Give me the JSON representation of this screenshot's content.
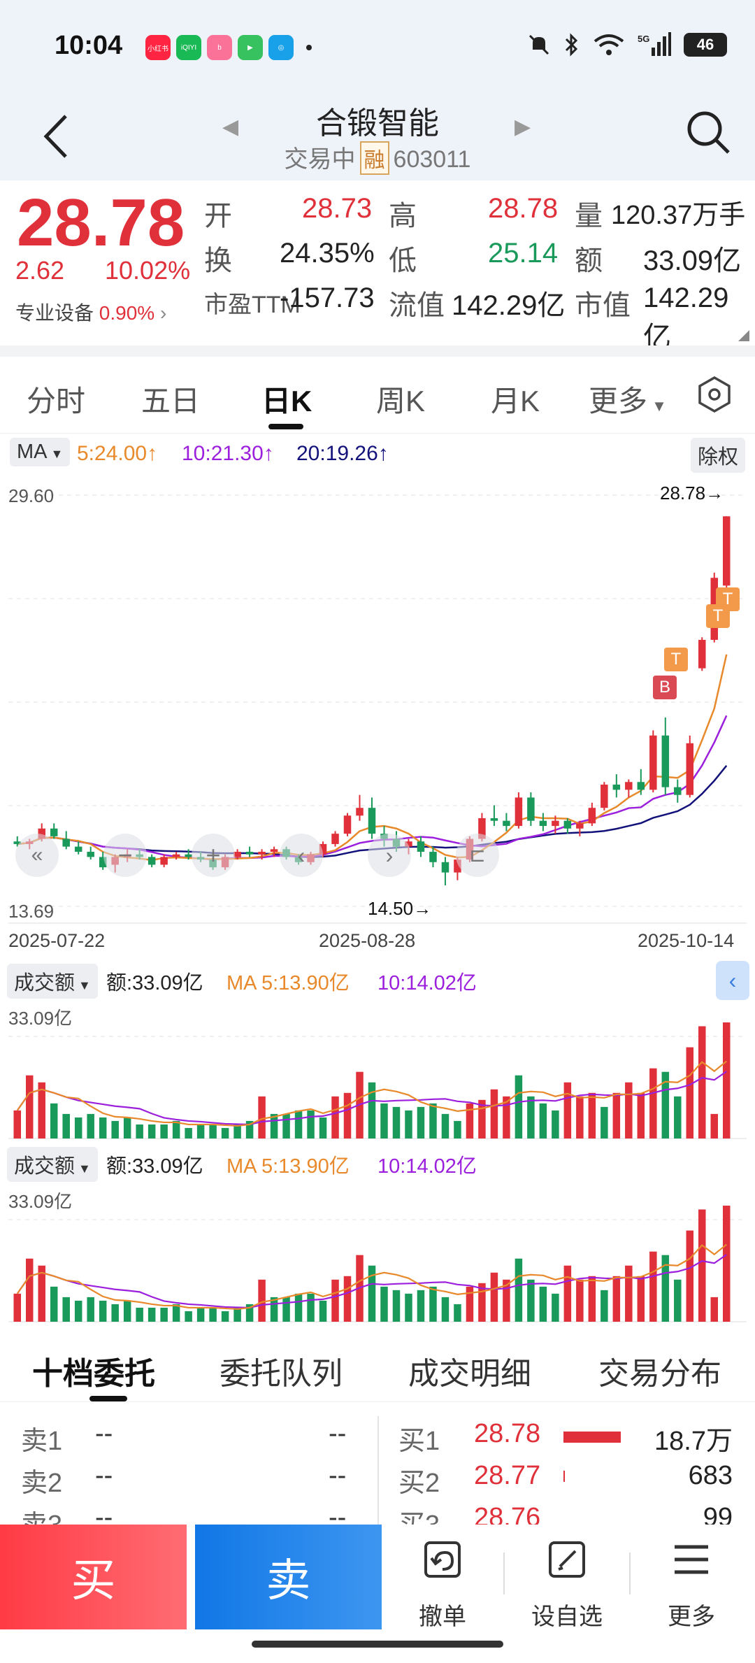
{
  "status": {
    "time": "10:04",
    "network": "5G",
    "battery": "46",
    "apps": [
      {
        "name": "小红书",
        "color": "#ff2442"
      },
      {
        "name": "iQIYI",
        "color": "#19b955"
      },
      {
        "name": "bilibili",
        "color": "#fb7299"
      },
      {
        "name": "video",
        "color": "#37c15f"
      },
      {
        "name": "mobile",
        "color": "#18a0e8"
      }
    ]
  },
  "header": {
    "title": "合锻智能",
    "status": "交易中",
    "margin_badge": "融",
    "code": "603011"
  },
  "quote": {
    "price": "28.78",
    "change": "2.62",
    "change_pct": "10.02%",
    "sector": "专业设备",
    "sector_pct": "0.90%",
    "open_label": "开",
    "open": "28.73",
    "high_label": "高",
    "high": "28.78",
    "volume_label": "量",
    "volume": "120.37万手",
    "turnover_label": "换",
    "turnover": "24.35%",
    "low_label": "低",
    "low": "25.14",
    "amount_label": "额",
    "amount": "33.09亿",
    "pe_label": "市盈TTM",
    "pe": "-157.73",
    "float_cap_label": "流值",
    "float_cap": "142.29亿",
    "mkt_cap_label": "市值",
    "mkt_cap": "142.29亿"
  },
  "tabs": [
    "分时",
    "五日",
    "日K",
    "周K",
    "月K",
    "更多"
  ],
  "active_tab": "日K",
  "ma": {
    "selector": "MA",
    "ma5": "5:24.00",
    "ma10": "10:21.30",
    "ma20": "20:19.26",
    "adjust": "除权",
    "colors": {
      "ma5": "#e8892b",
      "ma10": "#9b1fdc",
      "ma20": "#12127a"
    }
  },
  "kline": {
    "y_max_label": "29.60",
    "y_min_label": "13.69",
    "high_marker": "28.78→",
    "low_marker": "14.50→",
    "dates": [
      "2025-07-22",
      "2025-08-28",
      "2025-10-14"
    ],
    "trade_marks": [
      "B",
      "T",
      "T",
      "T"
    ]
  },
  "volume_panels": [
    {
      "selector": "成交额",
      "amount": "额:33.09亿",
      "ma5": "MA 5:13.90亿",
      "ma10": "10:14.02亿",
      "max_label": "33.09亿"
    },
    {
      "selector": "成交额",
      "amount": "额:33.09亿",
      "ma5": "MA 5:13.90亿",
      "ma10": "10:14.02亿",
      "max_label": "33.09亿"
    }
  ],
  "chart_data": {
    "type": "candlestick",
    "y_range": [
      13.69,
      29.6
    ],
    "candles": [
      [
        16.2,
        16.4,
        16.0,
        16.1
      ],
      [
        16.1,
        16.3,
        15.9,
        16.2
      ],
      [
        16.3,
        16.9,
        16.2,
        16.7
      ],
      [
        16.7,
        16.9,
        16.3,
        16.4
      ],
      [
        16.3,
        16.6,
        15.9,
        16.0
      ],
      [
        16.0,
        16.2,
        15.7,
        15.8
      ],
      [
        15.8,
        16.0,
        15.5,
        15.6
      ],
      [
        15.6,
        15.8,
        15.1,
        15.2
      ],
      [
        15.3,
        15.7,
        15.0,
        15.6
      ],
      [
        15.6,
        15.9,
        15.4,
        15.7
      ],
      [
        15.7,
        15.9,
        15.5,
        15.6
      ],
      [
        15.6,
        15.7,
        15.2,
        15.3
      ],
      [
        15.3,
        15.7,
        15.2,
        15.6
      ],
      [
        15.6,
        15.8,
        15.5,
        15.7
      ],
      [
        15.7,
        15.9,
        15.5,
        15.6
      ],
      [
        15.6,
        15.8,
        15.4,
        15.5
      ],
      [
        15.5,
        15.6,
        15.1,
        15.2
      ],
      [
        15.2,
        15.7,
        15.1,
        15.6
      ],
      [
        15.6,
        15.9,
        15.5,
        15.8
      ],
      [
        15.8,
        16.0,
        15.6,
        15.7
      ],
      [
        15.7,
        15.9,
        15.5,
        15.8
      ],
      [
        15.8,
        16.0,
        15.6,
        15.9
      ],
      [
        15.9,
        16.0,
        15.5,
        15.6
      ],
      [
        15.6,
        15.7,
        15.3,
        15.4
      ],
      [
        15.4,
        15.8,
        15.3,
        15.7
      ],
      [
        15.7,
        16.2,
        15.6,
        16.1
      ],
      [
        16.1,
        16.6,
        16.0,
        16.5
      ],
      [
        16.5,
        17.3,
        16.4,
        17.2
      ],
      [
        17.2,
        18.0,
        17.0,
        17.5
      ],
      [
        17.5,
        17.9,
        16.3,
        16.5
      ],
      [
        16.5,
        16.8,
        16.0,
        16.3
      ],
      [
        16.3,
        16.6,
        15.8,
        16.0
      ],
      [
        16.0,
        16.3,
        15.7,
        16.2
      ],
      [
        16.2,
        16.4,
        15.6,
        15.8
      ],
      [
        15.8,
        16.0,
        15.2,
        15.4
      ],
      [
        15.4,
        15.6,
        14.5,
        15.0
      ],
      [
        15.0,
        15.6,
        14.7,
        15.5
      ],
      [
        15.5,
        16.4,
        15.4,
        16.3
      ],
      [
        16.3,
        17.3,
        16.2,
        17.1
      ],
      [
        17.1,
        17.6,
        16.8,
        17.0
      ],
      [
        17.0,
        17.3,
        16.6,
        16.8
      ],
      [
        16.8,
        18.1,
        16.7,
        17.9
      ],
      [
        17.9,
        18.1,
        16.8,
        17.0
      ],
      [
        17.0,
        17.3,
        16.6,
        16.8
      ],
      [
        16.8,
        17.2,
        16.5,
        17.0
      ],
      [
        17.0,
        17.1,
        16.5,
        16.7
      ],
      [
        16.7,
        17.0,
        16.4,
        16.9
      ],
      [
        16.9,
        17.7,
        16.8,
        17.5
      ],
      [
        17.5,
        18.5,
        17.4,
        18.4
      ],
      [
        18.4,
        18.8,
        17.9,
        18.2
      ],
      [
        18.2,
        18.6,
        17.9,
        18.5
      ],
      [
        18.5,
        19.0,
        18.0,
        18.2
      ],
      [
        18.2,
        20.5,
        18.1,
        20.3
      ],
      [
        20.3,
        21.0,
        18.0,
        18.3
      ],
      [
        18.3,
        18.6,
        17.7,
        18.0
      ],
      [
        18.0,
        20.3,
        17.9,
        20.0
      ],
      [
        22.9,
        24.1,
        22.8,
        24.0
      ],
      [
        24.0,
        26.6,
        23.9,
        26.4
      ],
      [
        26.1,
        28.78,
        25.14,
        28.78
      ]
    ],
    "volume_amount_yi": [
      8,
      18,
      16,
      10,
      7,
      6,
      7,
      6,
      5,
      6,
      4,
      4,
      4,
      5,
      3,
      4,
      4,
      3,
      4,
      5,
      12,
      7,
      7,
      8,
      8,
      6,
      12,
      13,
      19,
      16,
      10,
      9,
      8,
      9,
      10,
      7,
      5,
      10,
      11,
      14,
      12,
      18,
      12,
      10,
      8,
      16,
      12,
      13,
      9,
      13,
      16,
      13,
      20,
      19,
      12,
      26,
      32,
      7,
      33.09
    ],
    "volume_up": [
      1,
      1,
      1,
      0,
      0,
      0,
      0,
      0,
      0,
      0,
      0,
      0,
      0,
      0,
      0,
      0,
      0,
      0,
      0,
      0,
      1,
      0,
      0,
      0,
      0,
      0,
      1,
      1,
      1,
      0,
      0,
      0,
      0,
      0,
      0,
      0,
      0,
      1,
      1,
      1,
      1,
      0,
      0,
      0,
      0,
      1,
      1,
      1,
      0,
      1,
      1,
      1,
      1,
      0,
      0,
      1,
      1,
      1,
      1
    ]
  },
  "order_tabs": [
    "十档委托",
    "委托队列",
    "成交明细",
    "交易分布"
  ],
  "order_book": {
    "asks": [
      {
        "label": "卖1",
        "price": "--",
        "vol": "--"
      },
      {
        "label": "卖2",
        "price": "--",
        "vol": "--"
      },
      {
        "label": "卖3",
        "price": "--",
        "vol": "--"
      }
    ],
    "bids": [
      {
        "label": "买1",
        "price": "28.78",
        "vol": "18.7万"
      },
      {
        "label": "买2",
        "price": "28.77",
        "vol": "683"
      },
      {
        "label": "买3",
        "price": "28.76",
        "vol": "99"
      }
    ]
  },
  "bottom": {
    "buy": "买",
    "sell": "卖",
    "cancel": "撤单",
    "watchlist": "设自选",
    "more": "更多"
  }
}
